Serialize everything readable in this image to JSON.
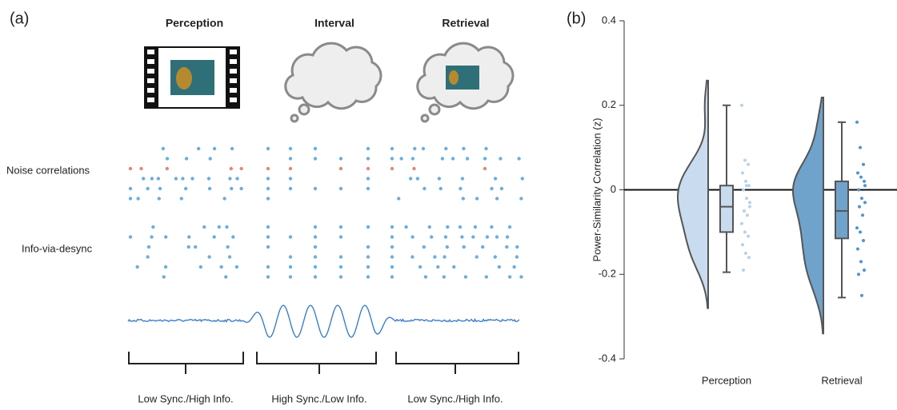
{
  "panel_a": {
    "label": "(a)",
    "phases": [
      "Perception",
      "Interval",
      "Retrieval"
    ],
    "rows": [
      "Noise correlations",
      "Info-via-desync"
    ],
    "brackets": [
      "Low Sync./High Info.",
      "High Sync./Low Info.",
      "Low Sync./High Info."
    ]
  },
  "chart_data": {
    "type": "raincloud",
    "panel_label": "(b)",
    "ylabel": "Power-Similarity Correlation (z)",
    "categories": [
      "Perception",
      "Retrieval"
    ],
    "ylim": [
      -0.4,
      0.4
    ],
    "yticks": [
      -0.4,
      -0.2,
      0,
      0.2,
      0.4
    ],
    "series": [
      {
        "name": "Perception",
        "color": "#c9dbee",
        "box": {
          "min": -0.195,
          "q1": -0.1,
          "median": -0.04,
          "q3": 0.01,
          "max": 0.2
        },
        "points": [
          0.2,
          0.07,
          0.06,
          0.04,
          0.02,
          0.01,
          0.0,
          -0.02,
          -0.03,
          -0.05,
          -0.06,
          -0.08,
          -0.1,
          -0.11,
          -0.13,
          -0.15,
          -0.16,
          -0.19,
          0.01,
          -0.04
        ]
      },
      {
        "name": "Retrieval",
        "color": "#6fa3cc",
        "box": {
          "min": -0.255,
          "q1": -0.115,
          "median": -0.05,
          "q3": 0.02,
          "max": 0.16
        },
        "points": [
          0.16,
          0.1,
          0.06,
          0.04,
          0.03,
          0.02,
          0.0,
          -0.02,
          -0.03,
          -0.04,
          -0.06,
          -0.09,
          -0.1,
          -0.12,
          -0.14,
          -0.17,
          -0.19,
          -0.2,
          -0.25,
          0.01
        ]
      }
    ]
  }
}
